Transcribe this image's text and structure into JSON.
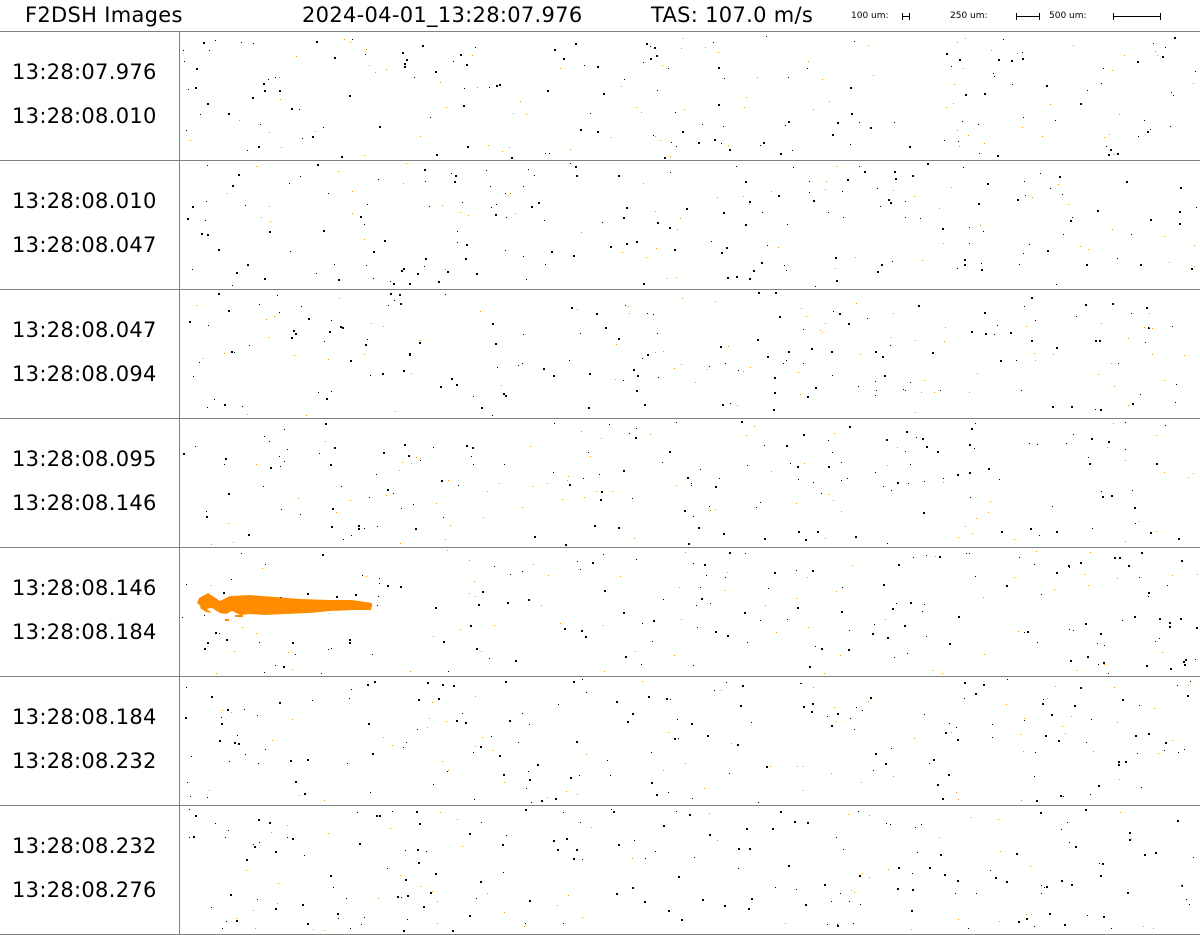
{
  "header": {
    "title": "F2DSH Images",
    "timestamp": "2024-04-01_13:28:07.976",
    "tas": "TAS: 107.0 m/s",
    "scale_bars": [
      {
        "label": "100 um:"
      },
      {
        "label": "250 um:"
      },
      {
        "label": "500 um:"
      }
    ]
  },
  "strips": [
    {
      "start": "13:28:07.976",
      "end": "13:28:08.010"
    },
    {
      "start": "13:28:08.010",
      "end": "13:28:08.047"
    },
    {
      "start": "13:28:08.047",
      "end": "13:28:08.094"
    },
    {
      "start": "13:28:08.095",
      "end": "13:28:08.146"
    },
    {
      "start": "13:28:08.146",
      "end": "13:28:08.184"
    },
    {
      "start": "13:28:08.184",
      "end": "13:28:08.232"
    },
    {
      "start": "13:28:08.232",
      "end": "13:28:08.276"
    }
  ],
  "colors": {
    "particle_dark": "#000000",
    "particle_light": "#ff8c00",
    "divider": "#808080"
  }
}
